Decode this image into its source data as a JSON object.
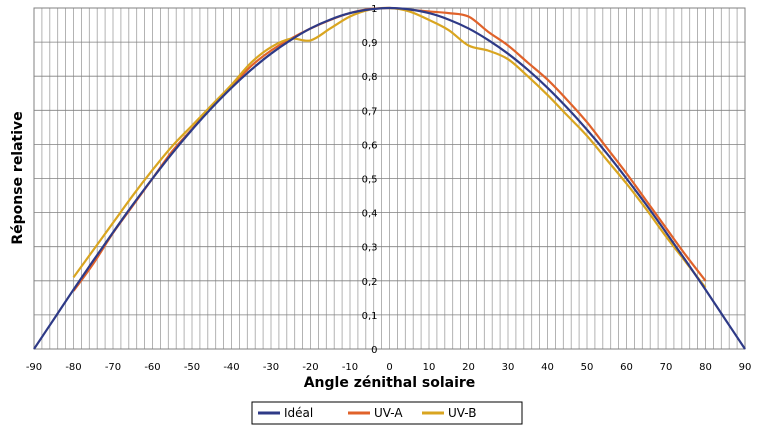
{
  "chart_data": {
    "type": "line",
    "title": "",
    "xlabel": "Angle zénithal solaire",
    "ylabel": "Réponse relative",
    "xlim": [
      -90,
      90
    ],
    "ylim": [
      0,
      1
    ],
    "x_ticks": [
      "-90",
      "-80",
      "-70",
      "-60",
      "-50",
      "-40",
      "-30",
      "-20",
      "-10",
      "0",
      "10",
      "20",
      "30",
      "40",
      "50",
      "60",
      "70",
      "80",
      "90"
    ],
    "y_ticks": [
      "0",
      "0,1",
      "0,2",
      "0,3",
      "0,4",
      "0,5",
      "0,6",
      "0,7",
      "0,8",
      "0,9",
      "1"
    ],
    "grid": true,
    "legend_position": "bottom",
    "series": [
      {
        "name": "Idéal",
        "color": "#2e3a87",
        "points": [
          [
            -90,
            0
          ],
          [
            -85,
            0.087
          ],
          [
            -80,
            0.174
          ],
          [
            -75,
            0.259
          ],
          [
            -70,
            0.342
          ],
          [
            -65,
            0.423
          ],
          [
            -60,
            0.5
          ],
          [
            -55,
            0.574
          ],
          [
            -50,
            0.643
          ],
          [
            -45,
            0.707
          ],
          [
            -40,
            0.766
          ],
          [
            -35,
            0.819
          ],
          [
            -30,
            0.866
          ],
          [
            -25,
            0.906
          ],
          [
            -20,
            0.94
          ],
          [
            -15,
            0.966
          ],
          [
            -10,
            0.985
          ],
          [
            -5,
            0.996
          ],
          [
            0,
            1
          ],
          [
            5,
            0.996
          ],
          [
            10,
            0.985
          ],
          [
            15,
            0.966
          ],
          [
            20,
            0.94
          ],
          [
            25,
            0.906
          ],
          [
            30,
            0.866
          ],
          [
            35,
            0.819
          ],
          [
            40,
            0.766
          ],
          [
            45,
            0.707
          ],
          [
            50,
            0.643
          ],
          [
            55,
            0.574
          ],
          [
            60,
            0.5
          ],
          [
            65,
            0.423
          ],
          [
            70,
            0.342
          ],
          [
            75,
            0.259
          ],
          [
            80,
            0.174
          ],
          [
            85,
            0.087
          ],
          [
            90,
            0
          ]
        ]
      },
      {
        "name": "UV-A",
        "color": "#e0622a",
        "points": [
          [
            -80,
            0.17
          ],
          [
            -75,
            0.25
          ],
          [
            -70,
            0.34
          ],
          [
            -65,
            0.42
          ],
          [
            -60,
            0.5
          ],
          [
            -55,
            0.58
          ],
          [
            -50,
            0.645
          ],
          [
            -45,
            0.71
          ],
          [
            -40,
            0.77
          ],
          [
            -35,
            0.83
          ],
          [
            -30,
            0.875
          ],
          [
            -25,
            0.91
          ],
          [
            -20,
            0.94
          ],
          [
            -15,
            0.965
          ],
          [
            -10,
            0.985
          ],
          [
            -5,
            0.997
          ],
          [
            0,
            1
          ],
          [
            5,
            0.995
          ],
          [
            10,
            0.99
          ],
          [
            15,
            0.985
          ],
          [
            20,
            0.975
          ],
          [
            25,
            0.93
          ],
          [
            30,
            0.89
          ],
          [
            35,
            0.84
          ],
          [
            40,
            0.79
          ],
          [
            45,
            0.73
          ],
          [
            50,
            0.665
          ],
          [
            55,
            0.59
          ],
          [
            60,
            0.515
          ],
          [
            65,
            0.435
          ],
          [
            70,
            0.355
          ],
          [
            75,
            0.275
          ],
          [
            80,
            0.2
          ]
        ]
      },
      {
        "name": "UV-B",
        "color": "#d9a520",
        "points": [
          [
            -80,
            0.21
          ],
          [
            -75,
            0.29
          ],
          [
            -70,
            0.37
          ],
          [
            -65,
            0.45
          ],
          [
            -60,
            0.525
          ],
          [
            -55,
            0.595
          ],
          [
            -50,
            0.655
          ],
          [
            -45,
            0.715
          ],
          [
            -40,
            0.775
          ],
          [
            -35,
            0.84
          ],
          [
            -30,
            0.885
          ],
          [
            -25,
            0.91
          ],
          [
            -20,
            0.905
          ],
          [
            -15,
            0.94
          ],
          [
            -10,
            0.975
          ],
          [
            -5,
            0.995
          ],
          [
            0,
            1
          ],
          [
            5,
            0.99
          ],
          [
            10,
            0.965
          ],
          [
            15,
            0.935
          ],
          [
            20,
            0.89
          ],
          [
            25,
            0.875
          ],
          [
            30,
            0.85
          ],
          [
            35,
            0.8
          ],
          [
            40,
            0.745
          ],
          [
            45,
            0.685
          ],
          [
            50,
            0.625
          ],
          [
            55,
            0.555
          ],
          [
            60,
            0.485
          ],
          [
            65,
            0.41
          ],
          [
            70,
            0.33
          ],
          [
            75,
            0.255
          ],
          [
            80,
            0.18
          ]
        ]
      }
    ]
  }
}
